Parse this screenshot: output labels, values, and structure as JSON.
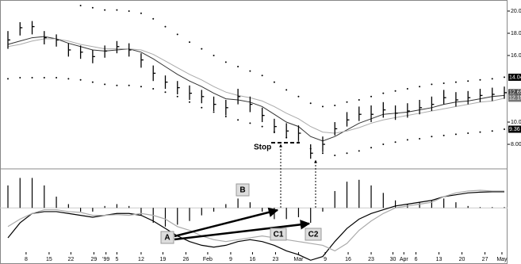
{
  "chart_data": {
    "type": "ohlc",
    "x": [
      0,
      1,
      2,
      3,
      4,
      5,
      6,
      7,
      8,
      9,
      10,
      11,
      12,
      13,
      14,
      15,
      16,
      17,
      18,
      19,
      20,
      21,
      22,
      23,
      24,
      25,
      26,
      27,
      28,
      29,
      30,
      31,
      32,
      33,
      34,
      35,
      36,
      37,
      38,
      39,
      40,
      41
    ],
    "xlim": [
      0,
      41
    ],
    "xticks": [
      {
        "value": 1.5,
        "label": "8"
      },
      {
        "value": 3.4,
        "label": "15"
      },
      {
        "value": 5.2,
        "label": "22"
      },
      {
        "value": 7.1,
        "label": "29"
      },
      {
        "value": 8.1,
        "label": "'99"
      },
      {
        "value": 9.0,
        "label": "5"
      },
      {
        "value": 11.0,
        "label": "12"
      },
      {
        "value": 12.8,
        "label": "19"
      },
      {
        "value": 14.7,
        "label": "26"
      },
      {
        "value": 16.5,
        "label": "Feb"
      },
      {
        "value": 18.4,
        "label": "9"
      },
      {
        "value": 20.2,
        "label": "16"
      },
      {
        "value": 22.1,
        "label": "23"
      },
      {
        "value": 24.0,
        "label": "Mar"
      },
      {
        "value": 26.2,
        "label": "9"
      },
      {
        "value": 28.1,
        "label": "16"
      },
      {
        "value": 30.0,
        "label": "23"
      },
      {
        "value": 31.8,
        "label": "30"
      },
      {
        "value": 32.7,
        "label": "Apr"
      },
      {
        "value": 33.7,
        "label": "6"
      },
      {
        "value": 35.6,
        "label": "13"
      },
      {
        "value": 37.5,
        "label": "20"
      },
      {
        "value": 39.4,
        "label": "27"
      },
      {
        "value": 40.8,
        "label": "May"
      }
    ],
    "ylim": [
      5.86,
      20.64
    ],
    "yticks": [
      {
        "value": 8,
        "label": "8.00"
      },
      {
        "value": 10,
        "label": "10.00"
      },
      {
        "value": 16,
        "label": "16.00"
      },
      {
        "value": 18,
        "label": "18.00"
      },
      {
        "value": 20,
        "label": "20.00"
      }
    ],
    "high": [
      18.2,
      19.0,
      19.1,
      18.2,
      17.9,
      17.1,
      16.9,
      16.5,
      16.9,
      17.3,
      17.1,
      16.2,
      15.1,
      14.2,
      13.7,
      13.3,
      12.9,
      12.3,
      12.0,
      13.0,
      12.3,
      11.3,
      10.3,
      9.9,
      9.7,
      8.0,
      8.7,
      10.0,
      10.9,
      11.4,
      11.5,
      11.8,
      11.5,
      11.7,
      12.0,
      12.3,
      12.9,
      12.7,
      12.8,
      13.0,
      13.1,
      13.2
    ],
    "low": [
      16.6,
      17.8,
      17.9,
      17.0,
      16.8,
      15.9,
      15.7,
      15.3,
      15.8,
      16.2,
      15.9,
      14.9,
      13.7,
      13.0,
      12.5,
      12.0,
      11.7,
      11.0,
      10.6,
      11.6,
      10.9,
      10.0,
      9.0,
      8.6,
      8.3,
      6.7,
      7.3,
      8.8,
      9.6,
      10.1,
      10.0,
      10.4,
      10.2,
      10.4,
      10.7,
      11.0,
      11.6,
      11.4,
      11.6,
      11.8,
      11.9,
      12.1
    ],
    "close": [
      17.4,
      18.5,
      18.6,
      17.6,
      17.4,
      16.5,
      16.3,
      15.9,
      16.4,
      16.8,
      16.5,
      15.6,
      14.4,
      13.6,
      13.1,
      12.6,
      12.3,
      11.6,
      11.3,
      12.3,
      11.6,
      10.6,
      9.6,
      9.2,
      9.0,
      7.2,
      8.0,
      9.4,
      10.2,
      10.7,
      10.7,
      11.1,
      10.8,
      11.0,
      11.3,
      11.6,
      12.2,
      12.0,
      12.2,
      12.4,
      12.5,
      12.65
    ],
    "bar_color": "#000000",
    "series": [
      {
        "style": "line",
        "color": "#333333",
        "values": [
          17.0,
          17.3,
          17.6,
          17.7,
          17.5,
          17.1,
          16.8,
          16.5,
          16.4,
          16.5,
          16.6,
          16.3,
          15.7,
          15.0,
          14.3,
          13.7,
          13.2,
          12.6,
          12.1,
          12.0,
          11.8,
          11.4,
          10.7,
          10.0,
          9.6,
          8.7,
          8.3,
          8.7,
          9.3,
          9.9,
          10.3,
          10.7,
          10.8,
          10.9,
          11.1,
          11.3,
          11.6,
          11.8,
          11.9,
          12.1,
          12.3,
          12.4
        ]
      },
      {
        "style": "line",
        "color": "#aaaaaa",
        "values": [
          16.8,
          17.0,
          17.3,
          17.5,
          17.5,
          17.3,
          17.0,
          16.8,
          16.6,
          16.6,
          16.6,
          16.5,
          16.1,
          15.5,
          14.9,
          14.3,
          13.8,
          13.2,
          12.7,
          12.4,
          12.2,
          11.9,
          11.4,
          10.8,
          10.3,
          9.6,
          9.1,
          9.0,
          9.2,
          9.5,
          9.9,
          10.2,
          10.4,
          10.6,
          10.8,
          11.0,
          11.2,
          11.4,
          11.6,
          11.8,
          11.9,
          12.15
        ]
      },
      {
        "style": "dots",
        "color": "#000000",
        "values": [
          null,
          null,
          null,
          null,
          null,
          null,
          20.5,
          20.3,
          20.1,
          20.1,
          20.0,
          19.8,
          19.3,
          18.6,
          17.9,
          17.2,
          16.6,
          16.0,
          15.4,
          15.0,
          14.6,
          14.2,
          13.6,
          12.9,
          12.3,
          11.7,
          11.4,
          11.5,
          11.8,
          12.0,
          12.3,
          12.6,
          12.8,
          13.0,
          13.2,
          13.4,
          13.5,
          13.6,
          13.7,
          13.8,
          13.9,
          14.04
        ]
      },
      {
        "style": "dots",
        "color": "#000000",
        "values": [
          13.9,
          14.0,
          14.0,
          14.0,
          14.0,
          13.9,
          13.8,
          13.6,
          13.4,
          13.3,
          13.3,
          13.2,
          13.0,
          12.7,
          12.3,
          11.8,
          11.3,
          10.9,
          10.5,
          10.2,
          9.9,
          9.6,
          9.1,
          8.6,
          8.2,
          7.6,
          7.2,
          7.0,
          7.2,
          7.4,
          7.7,
          8.0,
          8.2,
          8.4,
          8.5,
          8.7,
          8.8,
          8.9,
          9.0,
          9.1,
          9.2,
          9.36
        ]
      }
    ],
    "macd_ylim": [
      -1.5,
      1.0
    ],
    "macd_hist": [
      0.6,
      0.8,
      0.8,
      0.6,
      0.3,
      0.1,
      -0.1,
      -0.1,
      0.05,
      0.1,
      0.05,
      -0.2,
      -0.4,
      -0.5,
      -0.45,
      -0.35,
      -0.2,
      -0.1,
      0.1,
      0.25,
      0.15,
      -0.1,
      -0.3,
      -0.3,
      -0.25,
      -0.4,
      -0.1,
      0.45,
      0.7,
      0.75,
      0.6,
      0.4,
      0.2,
      0.1,
      0.15,
      0.2,
      0.25,
      0.15,
      0.05,
      0.02,
      0.02,
      0.02
    ],
    "macd_series": [
      {
        "color": "#000000",
        "values": [
          -0.8,
          -0.4,
          -0.15,
          -0.1,
          -0.1,
          -0.15,
          -0.2,
          -0.25,
          -0.2,
          -0.15,
          -0.15,
          -0.2,
          -0.35,
          -0.55,
          -0.75,
          -0.9,
          -1.0,
          -1.05,
          -1.0,
          -0.9,
          -0.85,
          -0.9,
          -1.0,
          -1.15,
          -1.25,
          -1.4,
          -1.3,
          -0.9,
          -0.55,
          -0.3,
          -0.15,
          -0.05,
          0.05,
          0.1,
          0.15,
          0.2,
          0.3,
          0.35,
          0.4,
          0.42,
          0.43,
          0.43
        ]
      },
      {
        "color": "#aaaaaa",
        "values": [
          -0.5,
          -0.3,
          -0.15,
          -0.05,
          -0.05,
          -0.1,
          -0.12,
          -0.2,
          -0.2,
          -0.18,
          -0.2,
          -0.15,
          -0.2,
          -0.3,
          -0.5,
          -0.6,
          -0.75,
          -0.85,
          -0.9,
          -0.85,
          -0.8,
          -0.75,
          -0.8,
          -0.85,
          -0.9,
          -0.95,
          -1.0,
          -1.15,
          -0.95,
          -0.6,
          -0.35,
          -0.15,
          0,
          0.05,
          0.1,
          0.15,
          0.3,
          0.4,
          0.45,
          0.47,
          0.45,
          0.45
        ]
      }
    ],
    "annotations": [
      "Stop",
      "A",
      "B",
      "C1",
      "C2"
    ]
  }
}
